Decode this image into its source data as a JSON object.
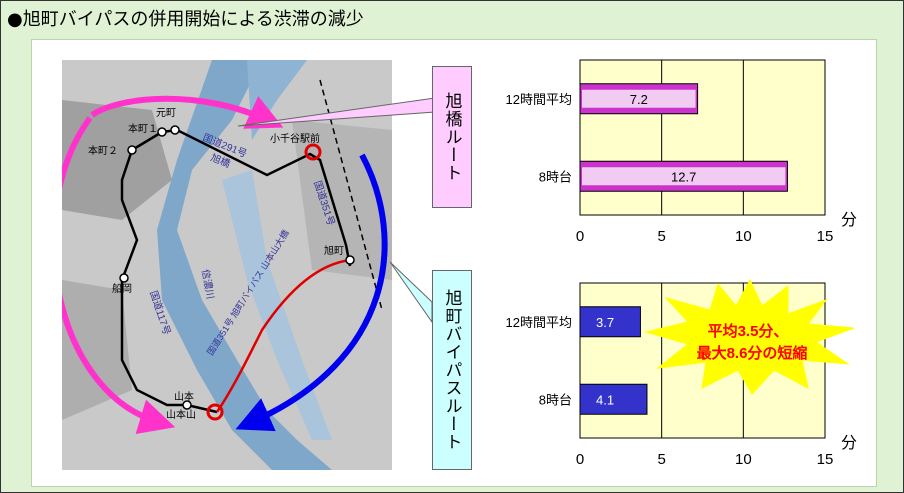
{
  "title": "●旭町バイパスの併用開始による渋滞の減少",
  "callouts": {
    "asahi_bridge_route": "旭橋ルート",
    "bypass_route": "旭町バイパスルート"
  },
  "map_labels": {
    "motomachi": "元町",
    "honmachi1": "本町１",
    "honmachi2": "本町２",
    "koichiya_station": "小千谷駅前",
    "route291": "国道291号",
    "asahi_bridge": "旭橋",
    "route351": "国道351号",
    "asahimachi": "旭町",
    "funaoka": "船岡",
    "route117": "国道117号",
    "shinano_river": "信濃川",
    "bypass_label": "国道351号 旭町バイパス 山本山大橋",
    "yamamoto": "山本",
    "yamamotoyama": "山本山"
  },
  "colors": {
    "pink_route": "#ff33cc",
    "blue_route": "#0000ee",
    "callout_pink": "#ffccff",
    "callout_cyan": "#ccffff",
    "chart_bg": "#ffffcc",
    "bar_pink": "#cc33cc",
    "bar_blue": "#3333cc",
    "burst": "#ffff00",
    "burst_text": "#ff0000"
  },
  "unit_label": "分",
  "burst_text": [
    "平均3.5分、",
    "最大8.6分の短縮"
  ],
  "chart_data": [
    {
      "type": "bar",
      "orientation": "horizontal",
      "series_label": "旭橋ルート",
      "categories": [
        "12時間平均",
        "8時台"
      ],
      "values": [
        7.2,
        12.7
      ],
      "xlim": [
        0,
        15
      ],
      "xticks": [
        0,
        5,
        10,
        15
      ],
      "unit": "分",
      "grid": true
    },
    {
      "type": "bar",
      "orientation": "horizontal",
      "series_label": "旭町バイパスルート",
      "categories": [
        "12時間平均",
        "8時台"
      ],
      "values": [
        3.7,
        4.1
      ],
      "xlim": [
        0,
        15
      ],
      "xticks": [
        0,
        5,
        10,
        15
      ],
      "unit": "分",
      "grid": true
    }
  ]
}
